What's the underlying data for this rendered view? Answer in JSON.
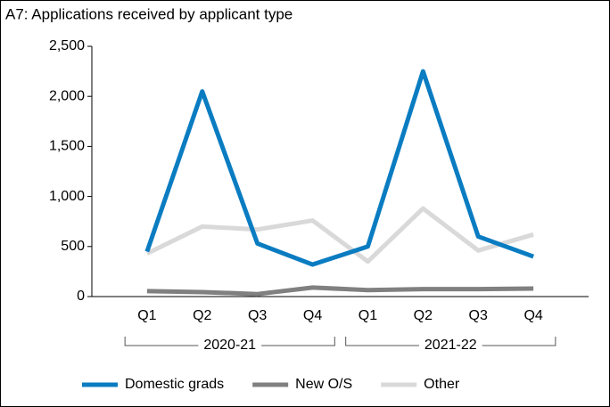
{
  "chart_data": {
    "type": "line",
    "title": "A7: Applications received by applicant type",
    "categories": [
      "Q1",
      "Q2",
      "Q3",
      "Q4",
      "Q1",
      "Q2",
      "Q3",
      "Q4"
    ],
    "group_labels": [
      "2020-21",
      "2021-22"
    ],
    "series": [
      {
        "name": "Domestic grads",
        "color": "#0a7cc1",
        "values": [
          450,
          2050,
          530,
          320,
          500,
          2250,
          600,
          400
        ]
      },
      {
        "name": "New O/S",
        "color": "#808080",
        "values": [
          55,
          45,
          25,
          90,
          65,
          75,
          75,
          80
        ]
      },
      {
        "name": "Other",
        "color": "#d9d9d9",
        "values": [
          430,
          700,
          670,
          760,
          350,
          880,
          460,
          620
        ]
      }
    ],
    "ylim": [
      0,
      2500
    ],
    "yticks": [
      0,
      500,
      {
        "value": 1000,
        "label": "1,000"
      },
      {
        "value": 1500,
        "label": "1,500"
      },
      {
        "value": 2000,
        "label": "2,000"
      },
      {
        "value": 2500,
        "label": "2,500"
      }
    ],
    "grid": false
  }
}
